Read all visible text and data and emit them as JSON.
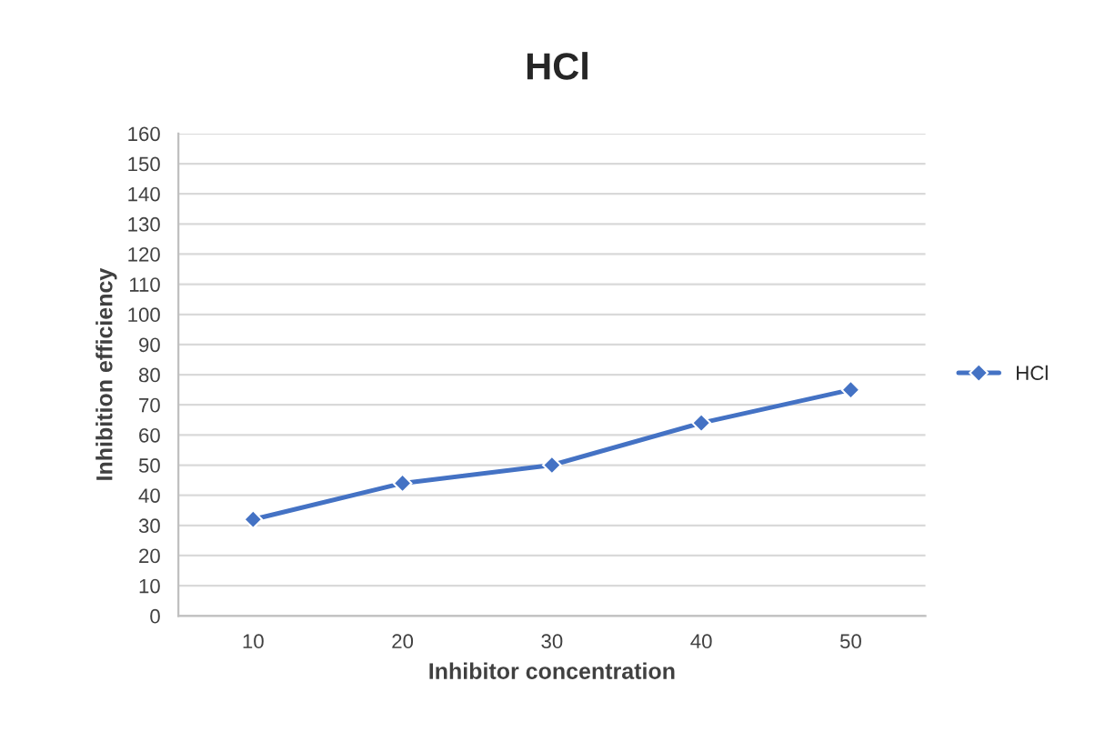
{
  "chart_data": {
    "type": "line",
    "title": "HCl",
    "xlabel": "Inhibitor concentration",
    "ylabel": "Inhibition efficiency",
    "categories": [
      "10",
      "20",
      "30",
      "40",
      "50"
    ],
    "series": [
      {
        "name": "HCl",
        "color": "#4472c4",
        "values": [
          32,
          44,
          50,
          64,
          75
        ]
      }
    ],
    "ylim": [
      0,
      160
    ],
    "yticks": [
      0,
      10,
      20,
      30,
      40,
      50,
      60,
      70,
      80,
      90,
      100,
      110,
      120,
      130,
      140,
      150,
      160
    ],
    "grid": "y",
    "legend": "right",
    "marker": "diamond",
    "line_style": "solid"
  }
}
